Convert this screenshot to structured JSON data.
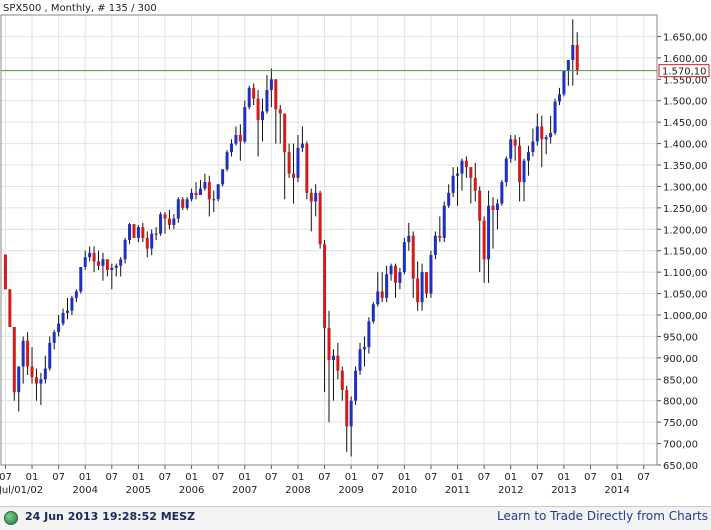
{
  "header": {
    "title": "SPX500 , Monthly, # 135 / 300"
  },
  "footer": {
    "timestamp": "24 Jun 2013 19:28:52 MESZ",
    "link": "Learn to Trade Directly from Charts"
  },
  "colors": {
    "up": "#1f2fbf",
    "down": "#d41a1a",
    "current_line": "#3aa03a",
    "current_label": "#d41a1a"
  },
  "chart_data": {
    "type": "candlestick",
    "title": "SPX500 , Monthly, # 135 / 300",
    "ylim": [
      650,
      1700
    ],
    "y_ticks": [
      "650,00",
      "700,00",
      "750,00",
      "800,00",
      "850,00",
      "900,00",
      "950,00",
      "1.000,00",
      "1.050,00",
      "1.100,00",
      "1.150,00",
      "1.200,00",
      "1.250,00",
      "1.300,00",
      "1.350,00",
      "1.400,00",
      "1.450,00",
      "1.500,00",
      "1.550,00",
      "1.600,00",
      "1.650,00"
    ],
    "y_tick_values": [
      650,
      700,
      750,
      800,
      850,
      900,
      950,
      1000,
      1050,
      1100,
      1150,
      1200,
      1250,
      1300,
      1350,
      1400,
      1450,
      1500,
      1550,
      1600,
      1650
    ],
    "current_value": 1570.1,
    "current_label": "1.570,10",
    "x_month_labels": [
      "07",
      "01",
      "07",
      "01",
      "07",
      "01",
      "07",
      "01",
      "07",
      "01",
      "07",
      "01",
      "07",
      "01",
      "07",
      "01",
      "07",
      "01",
      "07",
      "01",
      "07",
      "01",
      "07",
      "01",
      "07"
    ],
    "x_year_labels": [
      "Jul/01/02",
      "2004",
      "2005",
      "2006",
      "2007",
      "2008",
      "2009",
      "2010",
      "2011",
      "2012",
      "2013",
      "2014"
    ],
    "x_year_label_month_index": [
      0,
      18,
      30,
      42,
      54,
      66,
      78,
      90,
      102,
      114,
      126,
      138
    ],
    "start": "2002-07",
    "x_range_months": [
      -1,
      147
    ],
    "series": [
      {
        "ohlc": [
          [
            1141,
            1141,
            1060,
            1060
          ],
          [
            1060,
            1060,
            972,
            972
          ],
          [
            972,
            972,
            800,
            820
          ],
          [
            820,
            875,
            775,
            880
          ],
          [
            880,
            950,
            840,
            940
          ],
          [
            940,
            960,
            860,
            880
          ],
          [
            880,
            925,
            840,
            855
          ],
          [
            855,
            875,
            800,
            840
          ],
          [
            840,
            865,
            790,
            850
          ],
          [
            850,
            905,
            840,
            875
          ],
          [
            875,
            950,
            870,
            935
          ],
          [
            935,
            965,
            920,
            960
          ],
          [
            960,
            1000,
            950,
            980
          ],
          [
            980,
            1015,
            975,
            1005
          ],
          [
            1005,
            1040,
            990,
            1010
          ],
          [
            1010,
            1045,
            1000,
            1040
          ],
          [
            1040,
            1060,
            1030,
            1055
          ],
          [
            1055,
            1110,
            1050,
            1112
          ],
          [
            1112,
            1150,
            1105,
            1135
          ],
          [
            1135,
            1160,
            1125,
            1145
          ],
          [
            1145,
            1160,
            1100,
            1125
          ],
          [
            1125,
            1150,
            1105,
            1115
          ],
          [
            1115,
            1145,
            1080,
            1130
          ],
          [
            1130,
            1130,
            1090,
            1105
          ],
          [
            1105,
            1120,
            1060,
            1110
          ],
          [
            1110,
            1120,
            1090,
            1115
          ],
          [
            1115,
            1135,
            1090,
            1130
          ],
          [
            1130,
            1180,
            1120,
            1175
          ],
          [
            1175,
            1215,
            1165,
            1212
          ],
          [
            1212,
            1212,
            1180,
            1180
          ],
          [
            1180,
            1210,
            1170,
            1205
          ],
          [
            1205,
            1215,
            1170,
            1180
          ],
          [
            1180,
            1195,
            1135,
            1155
          ],
          [
            1155,
            1200,
            1140,
            1190
          ],
          [
            1190,
            1205,
            1175,
            1190
          ],
          [
            1190,
            1240,
            1185,
            1235
          ],
          [
            1235,
            1240,
            1190,
            1225
          ],
          [
            1225,
            1245,
            1200,
            1210
          ],
          [
            1210,
            1235,
            1200,
            1225
          ],
          [
            1225,
            1275,
            1215,
            1270
          ],
          [
            1270,
            1275,
            1245,
            1250
          ],
          [
            1250,
            1275,
            1245,
            1270
          ],
          [
            1270,
            1295,
            1265,
            1285
          ],
          [
            1285,
            1310,
            1270,
            1280
          ],
          [
            1280,
            1315,
            1280,
            1295
          ],
          [
            1295,
            1330,
            1290,
            1310
          ],
          [
            1310,
            1325,
            1230,
            1270
          ],
          [
            1270,
            1290,
            1240,
            1270
          ],
          [
            1270,
            1305,
            1265,
            1305
          ],
          [
            1305,
            1340,
            1300,
            1340
          ],
          [
            1340,
            1385,
            1335,
            1380
          ],
          [
            1380,
            1410,
            1370,
            1400
          ],
          [
            1400,
            1440,
            1395,
            1420
          ],
          [
            1420,
            1445,
            1360,
            1405
          ],
          [
            1405,
            1500,
            1400,
            1485
          ],
          [
            1485,
            1535,
            1480,
            1530
          ],
          [
            1530,
            1540,
            1490,
            1505
          ],
          [
            1505,
            1525,
            1370,
            1455
          ],
          [
            1455,
            1505,
            1405,
            1475
          ],
          [
            1475,
            1560,
            1470,
            1525
          ],
          [
            1525,
            1575,
            1485,
            1550
          ],
          [
            1550,
            1550,
            1400,
            1480
          ],
          [
            1480,
            1490,
            1400,
            1470
          ],
          [
            1470,
            1470,
            1270,
            1380
          ],
          [
            1380,
            1400,
            1320,
            1330
          ],
          [
            1330,
            1400,
            1260,
            1320
          ],
          [
            1320,
            1420,
            1310,
            1390
          ],
          [
            1390,
            1440,
            1380,
            1400
          ],
          [
            1400,
            1405,
            1270,
            1285
          ],
          [
            1285,
            1295,
            1195,
            1265
          ],
          [
            1265,
            1305,
            1230,
            1285
          ],
          [
            1285,
            1290,
            1155,
            1165
          ],
          [
            1165,
            1175,
            820,
            970
          ],
          [
            970,
            1010,
            750,
            895
          ],
          [
            895,
            920,
            800,
            905
          ],
          [
            905,
            935,
            850,
            870
          ],
          [
            870,
            880,
            800,
            825
          ],
          [
            825,
            835,
            680,
            740
          ],
          [
            740,
            810,
            670,
            800
          ],
          [
            800,
            880,
            790,
            870
          ],
          [
            870,
            935,
            860,
            920
          ],
          [
            920,
            950,
            880,
            925
          ],
          [
            925,
            995,
            910,
            985
          ],
          [
            985,
            1030,
            980,
            1025
          ],
          [
            1025,
            1100,
            1020,
            1055
          ],
          [
            1055,
            1100,
            1030,
            1040
          ],
          [
            1040,
            1115,
            1030,
            1095
          ],
          [
            1095,
            1120,
            1080,
            1115
          ],
          [
            1115,
            1120,
            1040,
            1075
          ],
          [
            1075,
            1110,
            1060,
            1100
          ],
          [
            1100,
            1180,
            1095,
            1170
          ],
          [
            1170,
            1215,
            1150,
            1185
          ],
          [
            1185,
            1195,
            1040,
            1085
          ],
          [
            1085,
            1125,
            1010,
            1030
          ],
          [
            1030,
            1120,
            1010,
            1100
          ],
          [
            1100,
            1100,
            1040,
            1050
          ],
          [
            1050,
            1150,
            1040,
            1140
          ],
          [
            1140,
            1195,
            1130,
            1185
          ],
          [
            1185,
            1230,
            1170,
            1180
          ],
          [
            1180,
            1265,
            1170,
            1255
          ],
          [
            1255,
            1305,
            1250,
            1285
          ],
          [
            1285,
            1345,
            1275,
            1325
          ],
          [
            1325,
            1345,
            1255,
            1330
          ],
          [
            1330,
            1365,
            1290,
            1360
          ],
          [
            1360,
            1370,
            1320,
            1345
          ],
          [
            1345,
            1345,
            1260,
            1320
          ],
          [
            1320,
            1355,
            1265,
            1290
          ],
          [
            1290,
            1300,
            1100,
            1220
          ],
          [
            1220,
            1230,
            1075,
            1130
          ],
          [
            1130,
            1290,
            1075,
            1255
          ],
          [
            1255,
            1275,
            1155,
            1245
          ],
          [
            1245,
            1270,
            1200,
            1260
          ],
          [
            1260,
            1315,
            1255,
            1310
          ],
          [
            1310,
            1370,
            1300,
            1365
          ],
          [
            1365,
            1420,
            1355,
            1410
          ],
          [
            1410,
            1420,
            1360,
            1395
          ],
          [
            1395,
            1415,
            1265,
            1310
          ],
          [
            1310,
            1365,
            1265,
            1360
          ],
          [
            1360,
            1395,
            1325,
            1380
          ],
          [
            1380,
            1435,
            1370,
            1405
          ],
          [
            1405,
            1470,
            1395,
            1440
          ],
          [
            1440,
            1465,
            1345,
            1410
          ],
          [
            1410,
            1420,
            1375,
            1415
          ],
          [
            1415,
            1465,
            1400,
            1425
          ],
          [
            1425,
            1505,
            1420,
            1498
          ],
          [
            1498,
            1530,
            1490,
            1515
          ],
          [
            1515,
            1570,
            1510,
            1570
          ],
          [
            1570,
            1595,
            1535,
            1595
          ],
          [
            1595,
            1690,
            1535,
            1630
          ],
          [
            1630,
            1660,
            1560,
            1570
          ]
        ]
      }
    ]
  }
}
